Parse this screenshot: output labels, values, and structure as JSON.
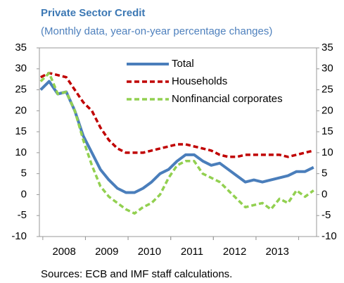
{
  "chart_data": {
    "type": "line",
    "title": "Private Sector Credit",
    "subtitle": "(Monthly data, year-on-year percentage changes)",
    "source": "Sources: ECB and IMF staff calculations.",
    "x": [
      2007.95,
      2008.15,
      2008.35,
      2008.55,
      2008.75,
      2008.95,
      2009.15,
      2009.35,
      2009.55,
      2009.75,
      2009.95,
      2010.15,
      2010.35,
      2010.55,
      2010.75,
      2010.95,
      2011.15,
      2011.35,
      2011.55,
      2011.75,
      2011.95,
      2012.15,
      2012.35,
      2012.55,
      2012.75,
      2012.95,
      2013.15,
      2013.35,
      2013.55,
      2013.75,
      2013.95,
      2014.15,
      2014.35
    ],
    "series": [
      {
        "name": "Total",
        "color": "#4a7ebb",
        "style": "solid",
        "values": [
          25,
          27,
          24,
          24.5,
          20,
          14,
          10,
          6,
          3.5,
          1.5,
          0.5,
          0.5,
          1.5,
          3,
          5,
          6,
          8,
          9.5,
          9.5,
          8,
          7,
          7.5,
          6,
          4.5,
          3,
          3.5,
          3,
          3.5,
          4,
          4.5,
          5.5,
          5.5,
          6.5
        ]
      },
      {
        "name": "Households",
        "color": "#c00000",
        "style": "dashed",
        "values": [
          28,
          29,
          28.5,
          28,
          25,
          22,
          20,
          16,
          13,
          11,
          10,
          10,
          10,
          10.5,
          11,
          11.5,
          12,
          12,
          11.5,
          11,
          10.5,
          9.5,
          9,
          9,
          9.5,
          9.5,
          9.5,
          9.5,
          9.5,
          9,
          9.5,
          10,
          10.5
        ]
      },
      {
        "name": "Nonfinancial corporates",
        "color": "#92d050",
        "style": "dashed",
        "values": [
          27,
          29,
          24,
          24.5,
          20,
          13,
          7,
          2,
          -0.5,
          -2,
          -3.5,
          -4.5,
          -3,
          -2,
          0,
          4,
          7,
          8,
          8,
          5,
          4,
          3,
          1,
          -1,
          -3,
          -2.5,
          -2,
          -3.5,
          -1,
          -2,
          1,
          -0.5,
          1
        ]
      }
    ],
    "xlim": [
      2007.92,
      2014.42
    ],
    "xticks": [
      {
        "value": 2008.5,
        "label": "2008"
      },
      {
        "value": 2009.5,
        "label": "2009"
      },
      {
        "value": 2010.5,
        "label": "2010"
      },
      {
        "value": 2011.5,
        "label": "2011"
      },
      {
        "value": 2012.5,
        "label": "2012"
      },
      {
        "value": 2013.5,
        "label": "2013"
      }
    ],
    "ylim": [
      -10,
      35
    ],
    "yticks": [
      -10,
      -5,
      0,
      5,
      10,
      15,
      20,
      25,
      30,
      35
    ],
    "y2lim": [
      -10,
      35
    ],
    "y2ticks": [
      -10,
      -5,
      0,
      5,
      10,
      15,
      20,
      25,
      30,
      35
    ],
    "legend": "top"
  }
}
